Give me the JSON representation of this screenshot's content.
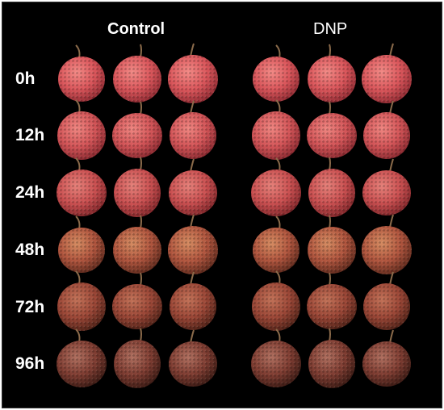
{
  "column_titles": {
    "control": "Control",
    "dnp": "DNP"
  },
  "rows": [
    "0h",
    "12h",
    "24h",
    "48h",
    "72h",
    "96h"
  ],
  "colors": {
    "background": "#000000",
    "row_palettes": [
      {
        "base": "#d9555a",
        "light": "#f28a86",
        "dark": "#8e2a32"
      },
      {
        "base": "#d25457",
        "light": "#ef8681",
        "dark": "#88282f"
      },
      {
        "base": "#c94f50",
        "light": "#e5817a",
        "dark": "#7e2529"
      },
      {
        "base": "#b0553e",
        "light": "#d58c62",
        "dark": "#5e2a1d"
      },
      {
        "base": "#9a4636",
        "light": "#c27258",
        "dark": "#4f2218"
      },
      {
        "base": "#7f3d32",
        "light": "#b07060",
        "dark": "#3a1a14"
      }
    ]
  }
}
